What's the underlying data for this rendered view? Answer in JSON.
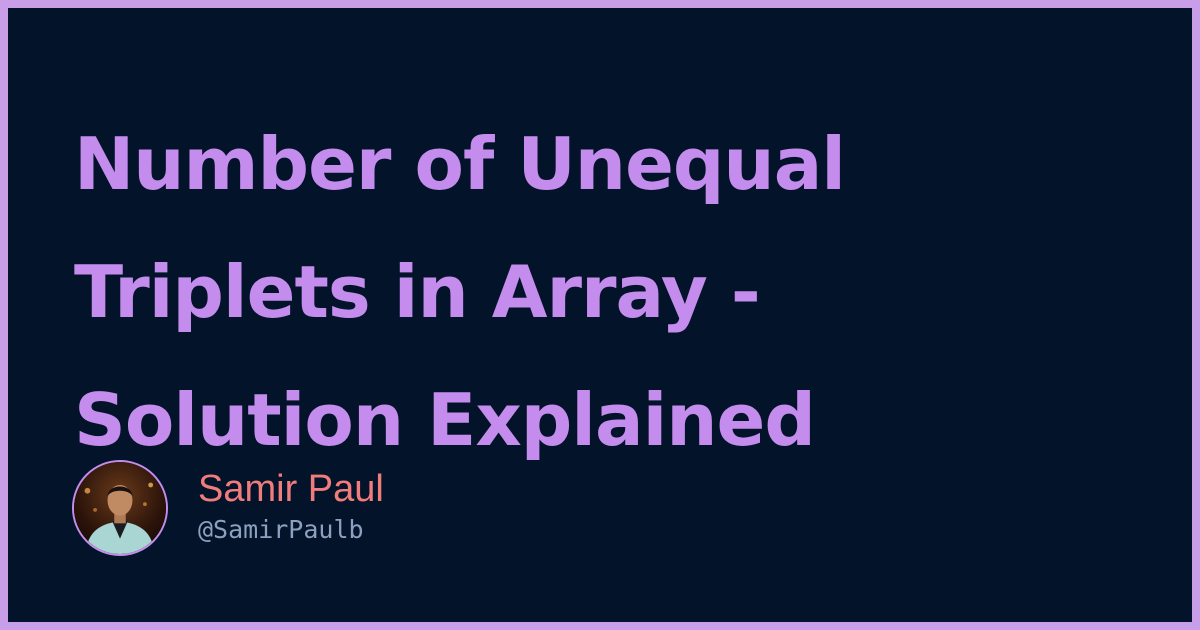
{
  "title_lines": [
    "Number of Unequal",
    "Triplets in Array -",
    "Solution Explained"
  ],
  "author": {
    "name": "Samir Paul",
    "handle": "@SamirPaulb"
  },
  "colors": {
    "frame": "#c89ee8",
    "background": "#03142a",
    "title": "#c48cec",
    "name": "#f07c7c",
    "handle": "#8ca0bf"
  }
}
